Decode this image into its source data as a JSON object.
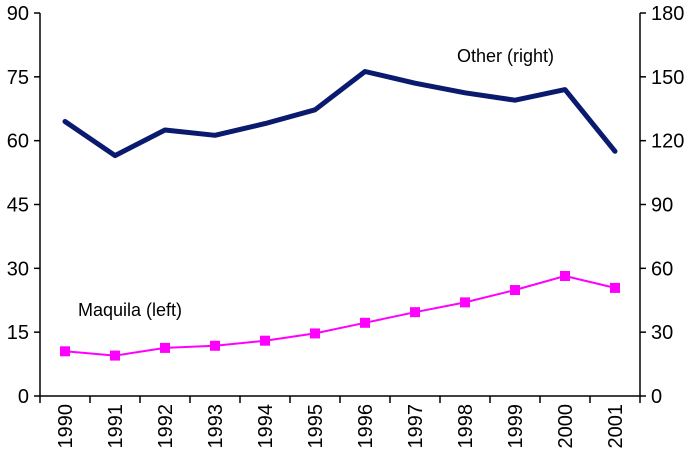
{
  "chart_data": {
    "type": "line",
    "categories": [
      "1990",
      "1991",
      "1992",
      "1993",
      "1994",
      "1995",
      "1996",
      "1997",
      "1998",
      "1999",
      "2000",
      "2001"
    ],
    "y_left": {
      "ticks": [
        "0",
        "15",
        "30",
        "45",
        "60",
        "75",
        "90"
      ],
      "ylim": [
        0,
        90
      ]
    },
    "y_right": {
      "ticks": [
        "0",
        "30",
        "60",
        "90",
        "120",
        "150",
        "180"
      ],
      "ylim": [
        0,
        180
      ]
    },
    "series": [
      {
        "name": "Other (right)",
        "axis": "right",
        "color": "#0a1a6e",
        "values": [
          129,
          113,
          125,
          122.5,
          128,
          134.5,
          152.5,
          147,
          142.5,
          139,
          144,
          115
        ]
      },
      {
        "name": "Maquila (left)",
        "axis": "left",
        "color": "#ff00ff",
        "marker": "square",
        "values": [
          10.5,
          9.5,
          11.3,
          11.8,
          13,
          14.7,
          17.2,
          19.7,
          22,
          24.9,
          28.2,
          25.4
        ]
      }
    ],
    "grid": false,
    "legend": "inline labels"
  }
}
